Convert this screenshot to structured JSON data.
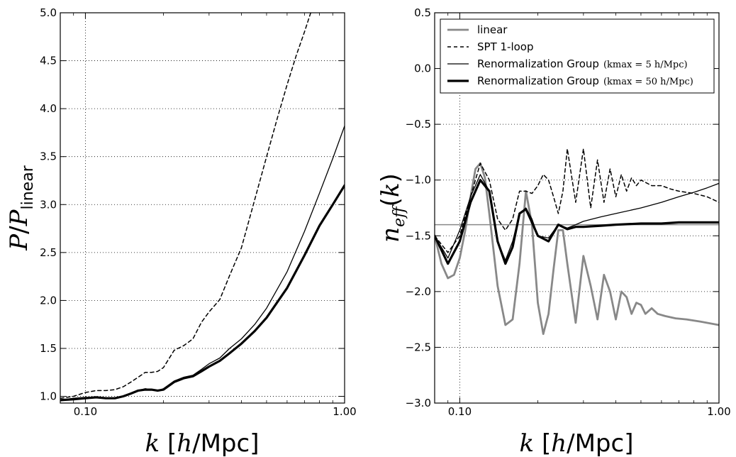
{
  "chart_data": [
    {
      "type": "line",
      "xscale": "log",
      "xlim": [
        0.08,
        1.0
      ],
      "ylim": [
        0.93,
        5.0
      ],
      "x_ticks": [
        "0.10",
        "1.00"
      ],
      "x_tick_values": [
        0.1,
        1.0
      ],
      "y_ticks": [
        "1.0",
        "1.5",
        "2.0",
        "2.5",
        "3.0",
        "3.5",
        "4.0",
        "4.5",
        "5.0"
      ],
      "y_tick_values": [
        1.0,
        1.5,
        2.0,
        2.5,
        3.0,
        3.5,
        4.0,
        4.5,
        5.0
      ],
      "xlabel": "k [h/Mpc]",
      "ylabel": "P/P_linear",
      "grid": true,
      "series": [
        {
          "key": "spt",
          "color": "#000000",
          "dashed": true,
          "width": 1.5,
          "x": [
            0.08,
            0.09,
            0.1,
            0.11,
            0.12,
            0.13,
            0.14,
            0.15,
            0.16,
            0.17,
            0.18,
            0.19,
            0.2,
            0.22,
            0.24,
            0.26,
            0.28,
            0.3,
            0.33,
            0.36,
            0.4,
            0.45,
            0.5,
            0.55,
            0.6,
            0.65,
            0.7,
            0.74
          ],
          "y": [
            0.98,
            1.0,
            1.04,
            1.06,
            1.06,
            1.07,
            1.1,
            1.15,
            1.2,
            1.25,
            1.25,
            1.26,
            1.3,
            1.48,
            1.53,
            1.6,
            1.77,
            1.88,
            2.01,
            2.26,
            2.55,
            3.05,
            3.5,
            3.9,
            4.25,
            4.55,
            4.8,
            5.0
          ]
        },
        {
          "key": "rg5",
          "color": "#000000",
          "dashed": false,
          "width": 1.3,
          "x": [
            0.08,
            0.09,
            0.1,
            0.11,
            0.12,
            0.13,
            0.14,
            0.15,
            0.16,
            0.17,
            0.18,
            0.19,
            0.2,
            0.22,
            0.24,
            0.26,
            0.28,
            0.3,
            0.33,
            0.36,
            0.4,
            0.45,
            0.5,
            0.6,
            0.7,
            0.8,
            0.9,
            1.0
          ],
          "y": [
            0.96,
            0.98,
            0.99,
            0.99,
            0.98,
            0.98,
            1.0,
            1.03,
            1.06,
            1.08,
            1.07,
            1.06,
            1.08,
            1.16,
            1.2,
            1.22,
            1.28,
            1.34,
            1.4,
            1.5,
            1.6,
            1.75,
            1.92,
            2.3,
            2.72,
            3.12,
            3.48,
            3.82
          ]
        },
        {
          "key": "rg50",
          "color": "#000000",
          "dashed": false,
          "width": 3.2,
          "x": [
            0.08,
            0.09,
            0.1,
            0.11,
            0.12,
            0.13,
            0.14,
            0.15,
            0.16,
            0.17,
            0.18,
            0.19,
            0.2,
            0.22,
            0.24,
            0.26,
            0.28,
            0.3,
            0.33,
            0.36,
            0.4,
            0.45,
            0.5,
            0.6,
            0.7,
            0.8,
            0.9,
            1.0
          ],
          "y": [
            0.96,
            0.97,
            0.98,
            0.99,
            0.98,
            0.98,
            1.0,
            1.03,
            1.06,
            1.07,
            1.07,
            1.06,
            1.07,
            1.15,
            1.19,
            1.21,
            1.26,
            1.31,
            1.37,
            1.45,
            1.55,
            1.68,
            1.82,
            2.13,
            2.47,
            2.78,
            3.0,
            3.2
          ]
        }
      ]
    },
    {
      "type": "line",
      "xscale": "log",
      "xlim": [
        0.08,
        1.0
      ],
      "ylim": [
        -3.0,
        0.5
      ],
      "x_ticks": [
        "0.10",
        "1.00"
      ],
      "x_tick_values": [
        0.1,
        1.0
      ],
      "y_ticks": [
        "−3.0",
        "−2.5",
        "−2.0",
        "−1.5",
        "−1.0",
        "−0.5",
        "0.0",
        "0.5"
      ],
      "y_tick_values": [
        -3.0,
        -2.5,
        -2.0,
        -1.5,
        -1.0,
        -0.5,
        0.0,
        0.5
      ],
      "xlabel": "k [h/Mpc]",
      "ylabel": "n_eff(k)",
      "grid": true,
      "hline": {
        "y": -1.4,
        "color": "#888888"
      },
      "legend": {
        "position": "top-right",
        "entries": [
          {
            "key": "linear",
            "label": "linear",
            "math": ""
          },
          {
            "key": "spt",
            "label": "SPT 1-loop",
            "math": ""
          },
          {
            "key": "rg5",
            "label": "Renormalization Group",
            "math": "(kmax = 5 h/Mpc)"
          },
          {
            "key": "rg50",
            "label": "Renormalization Group",
            "math": "(kmax = 50 h/Mpc)"
          }
        ]
      },
      "series": [
        {
          "key": "linear",
          "color": "#888888",
          "dashed": false,
          "width": 2.8,
          "x": [
            0.08,
            0.085,
            0.09,
            0.095,
            0.1,
            0.105,
            0.11,
            0.115,
            0.12,
            0.125,
            0.13,
            0.14,
            0.15,
            0.16,
            0.17,
            0.18,
            0.19,
            0.2,
            0.21,
            0.22,
            0.23,
            0.24,
            0.25,
            0.26,
            0.28,
            0.3,
            0.32,
            0.34,
            0.36,
            0.38,
            0.4,
            0.42,
            0.44,
            0.46,
            0.48,
            0.5,
            0.52,
            0.55,
            0.58,
            0.62,
            0.68,
            0.75,
            0.85,
            1.0
          ],
          "y": [
            -1.5,
            -1.75,
            -1.88,
            -1.85,
            -1.7,
            -1.45,
            -1.15,
            -0.9,
            -0.85,
            -0.98,
            -1.3,
            -1.95,
            -2.3,
            -2.25,
            -1.75,
            -1.1,
            -1.4,
            -2.1,
            -2.38,
            -2.2,
            -1.8,
            -1.45,
            -1.45,
            -1.75,
            -2.28,
            -1.68,
            -1.95,
            -2.25,
            -1.85,
            -2.0,
            -2.25,
            -2.0,
            -2.05,
            -2.2,
            -2.1,
            -2.12,
            -2.2,
            -2.15,
            -2.2,
            -2.22,
            -2.24,
            -2.25,
            -2.27,
            -2.3
          ]
        },
        {
          "key": "spt",
          "color": "#000000",
          "dashed": true,
          "width": 1.5,
          "x": [
            0.08,
            0.09,
            0.1,
            0.11,
            0.12,
            0.13,
            0.14,
            0.15,
            0.16,
            0.17,
            0.18,
            0.19,
            0.2,
            0.21,
            0.22,
            0.23,
            0.24,
            0.25,
            0.26,
            0.28,
            0.3,
            0.32,
            0.34,
            0.36,
            0.38,
            0.4,
            0.42,
            0.44,
            0.46,
            0.48,
            0.5,
            0.55,
            0.6,
            0.65,
            0.7,
            0.8,
            0.9,
            1.0
          ],
          "y": [
            -1.5,
            -1.65,
            -1.5,
            -1.15,
            -0.85,
            -1.0,
            -1.35,
            -1.45,
            -1.35,
            -1.1,
            -1.1,
            -1.12,
            -1.05,
            -0.95,
            -1.0,
            -1.15,
            -1.3,
            -1.1,
            -0.72,
            -1.2,
            -0.72,
            -1.25,
            -0.82,
            -1.2,
            -0.9,
            -1.15,
            -0.95,
            -1.1,
            -0.98,
            -1.05,
            -1.0,
            -1.05,
            -1.05,
            -1.08,
            -1.1,
            -1.12,
            -1.15,
            -1.2
          ]
        },
        {
          "key": "rg5",
          "color": "#000000",
          "dashed": false,
          "width": 1.3,
          "x": [
            0.08,
            0.09,
            0.1,
            0.11,
            0.12,
            0.13,
            0.14,
            0.15,
            0.16,
            0.17,
            0.18,
            0.19,
            0.2,
            0.22,
            0.24,
            0.26,
            0.28,
            0.3,
            0.35,
            0.4,
            0.5,
            0.6,
            0.7,
            0.8,
            0.9,
            1.0
          ],
          "y": [
            -1.5,
            -1.7,
            -1.45,
            -1.15,
            -0.95,
            -1.1,
            -1.55,
            -1.72,
            -1.55,
            -1.3,
            -1.25,
            -1.35,
            -1.5,
            -1.52,
            -1.4,
            -1.43,
            -1.4,
            -1.37,
            -1.33,
            -1.3,
            -1.25,
            -1.2,
            -1.15,
            -1.11,
            -1.07,
            -1.03
          ]
        },
        {
          "key": "rg50",
          "color": "#000000",
          "dashed": false,
          "width": 3.2,
          "x": [
            0.08,
            0.09,
            0.1,
            0.11,
            0.12,
            0.13,
            0.14,
            0.15,
            0.16,
            0.17,
            0.18,
            0.19,
            0.2,
            0.22,
            0.24,
            0.26,
            0.28,
            0.3,
            0.35,
            0.4,
            0.5,
            0.6,
            0.7,
            0.8,
            0.9,
            1.0
          ],
          "y": [
            -1.5,
            -1.75,
            -1.55,
            -1.2,
            -1.0,
            -1.1,
            -1.55,
            -1.75,
            -1.6,
            -1.3,
            -1.26,
            -1.38,
            -1.5,
            -1.55,
            -1.4,
            -1.44,
            -1.42,
            -1.42,
            -1.41,
            -1.4,
            -1.39,
            -1.39,
            -1.38,
            -1.38,
            -1.38,
            -1.38
          ]
        }
      ]
    }
  ]
}
